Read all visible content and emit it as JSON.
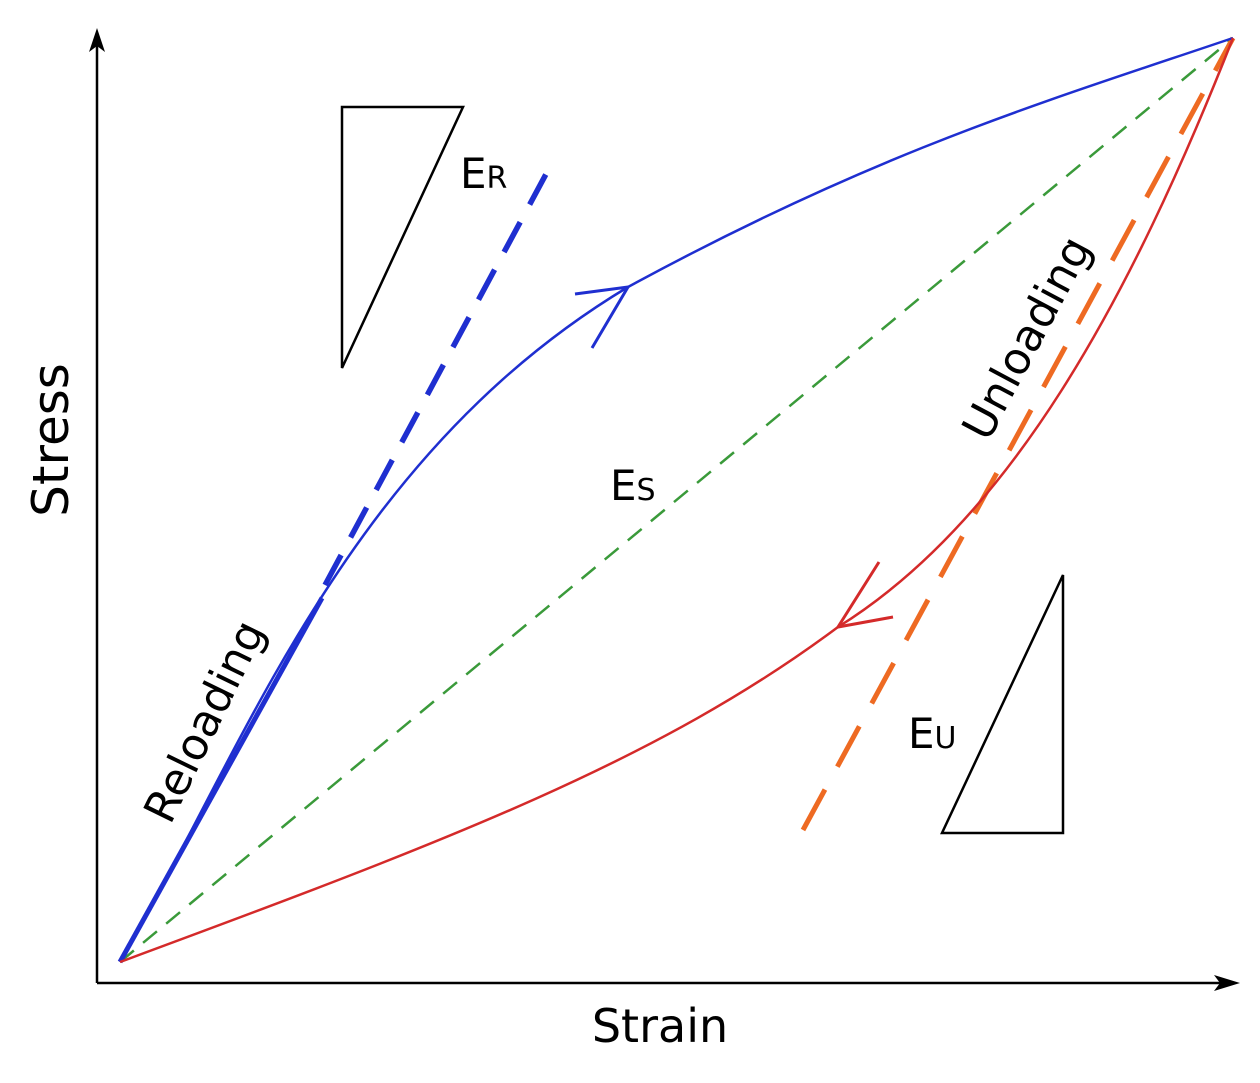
{
  "labels": {
    "y_axis": "Stress",
    "x_axis": "Strain",
    "reloading": "Reloading",
    "unloading": "Unloading",
    "er_main": "E",
    "er_sub": "R",
    "es_main": "E",
    "es_sub": "S",
    "eu_main": "E",
    "eu_sub": "U"
  },
  "colors": {
    "axis": "#000000",
    "reloading_curve": "#1f2fd0",
    "unloading_curve": "#d42a2a",
    "secant": "#3a9a3a",
    "reload_tangent": "#1f2fd0",
    "unload_tangent": "#ee6a22",
    "triangle": "#000000"
  }
}
